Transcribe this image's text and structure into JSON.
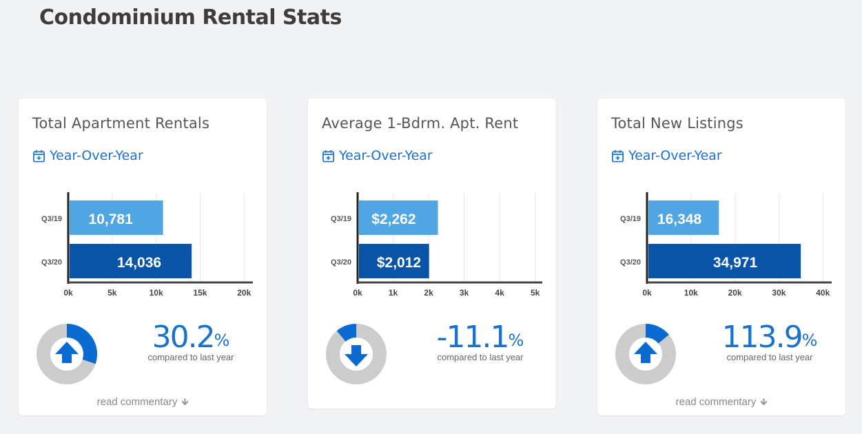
{
  "page": {
    "title": "Condominium Rental Stats"
  },
  "cards": [
    {
      "title": "Total Apartment Rentals",
      "period_label": "Year-Over-Year",
      "change": {
        "value": "30.2",
        "unit": "%",
        "caption": "compared to last year",
        "direction": "up",
        "fraction": 0.302
      },
      "commentary_label": "read commentary",
      "has_commentary": true
    },
    {
      "title": "Average 1-Bdrm. Apt. Rent",
      "period_label": "Year-Over-Year",
      "change": {
        "value": "-11.1",
        "unit": "%",
        "caption": "compared to last year",
        "direction": "down",
        "fraction": 0.111
      },
      "commentary_label": "",
      "has_commentary": false
    },
    {
      "title": "Total New Listings",
      "period_label": "Year-Over-Year",
      "change": {
        "value": "113.9",
        "unit": "%",
        "caption": "compared to last year",
        "direction": "up",
        "fraction": 0.139
      },
      "commentary_label": "read commentary",
      "has_commentary": true
    }
  ],
  "chart_data": [
    {
      "type": "bar",
      "orientation": "horizontal",
      "categories": [
        "Q3/19",
        "Q3/20"
      ],
      "values": [
        10781,
        14036
      ],
      "data_labels": [
        "10,781",
        "14,036"
      ],
      "xlim": [
        0,
        21000
      ],
      "xticks": [
        0,
        5000,
        10000,
        15000,
        20000
      ],
      "xtick_labels": [
        "0k",
        "5k",
        "10k",
        "15k",
        "20k"
      ],
      "grid": true,
      "colors": [
        "#4fa6e3",
        "#0a54a8"
      ]
    },
    {
      "type": "bar",
      "orientation": "horizontal",
      "categories": [
        "Q3/19",
        "Q3/20"
      ],
      "values": [
        2262,
        2012
      ],
      "data_labels": [
        "$2,262",
        "$2,012"
      ],
      "xlim": [
        0,
        5200
      ],
      "xticks": [
        0,
        1000,
        2000,
        3000,
        4000,
        5000
      ],
      "xtick_labels": [
        "0k",
        "1k",
        "2k",
        "3k",
        "4k",
        "5k"
      ],
      "grid": true,
      "colors": [
        "#4fa6e3",
        "#0a54a8"
      ]
    },
    {
      "type": "bar",
      "orientation": "horizontal",
      "categories": [
        "Q3/19",
        "Q3/20"
      ],
      "values": [
        16348,
        34971
      ],
      "data_labels": [
        "16,348",
        "34,971"
      ],
      "xlim": [
        0,
        42000
      ],
      "xticks": [
        0,
        10000,
        20000,
        30000,
        40000
      ],
      "xtick_labels": [
        "0k",
        "10k",
        "20k",
        "30k",
        "40k"
      ],
      "grid": true,
      "colors": [
        "#4fa6e3",
        "#0a54a8"
      ]
    }
  ],
  "theme": {
    "accent": "#1a73c8",
    "donut_track": "#cccccc",
    "donut_fill": "#0a6ad0"
  }
}
